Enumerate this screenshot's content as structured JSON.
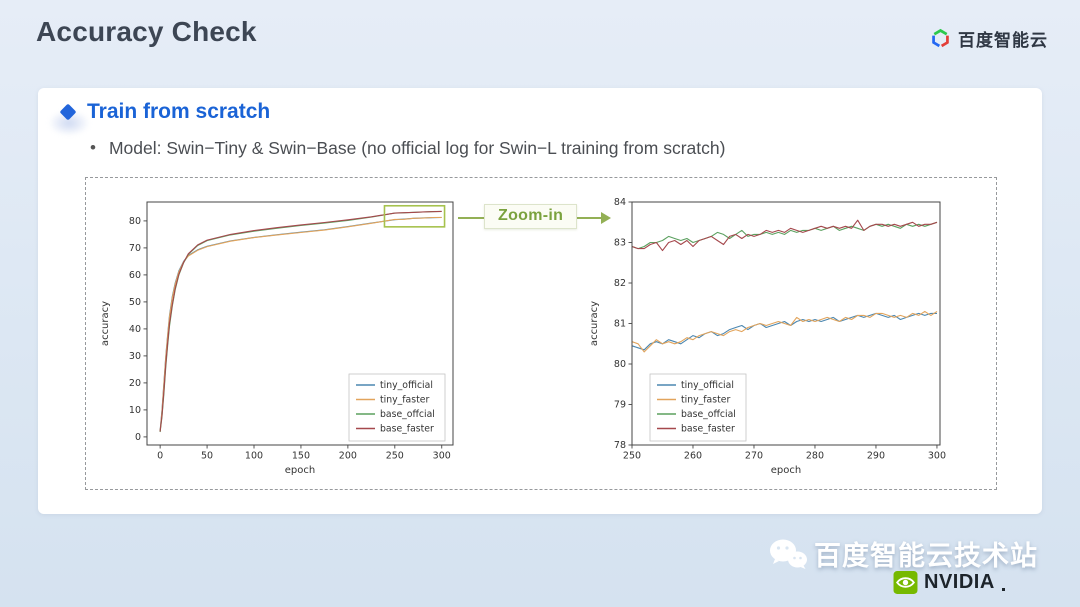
{
  "page": {
    "title": "Accuracy Check"
  },
  "brand": {
    "baidu_cloud": "百度智能云",
    "wechat_channel": "百度智能云技术站",
    "nvidia": "NVIDIA",
    "baidu_icon_colors": {
      "green": "#2dc84d",
      "blue": "#2468f2",
      "red": "#e33e38"
    },
    "nvidia_green": "#76b900"
  },
  "section": {
    "heading": "Train from scratch",
    "bullet_glyph": "•",
    "bullet": "Model: Swin−Tiny & Swin−Base (no official log for Swin−L training from scratch)"
  },
  "zoom": {
    "label": "Zoom-in",
    "arrow_color": "#93b055"
  },
  "chart_data": [
    {
      "type": "line",
      "title": "",
      "xlabel": "epoch",
      "ylabel": "accuracy",
      "xlim": [
        -14,
        312
      ],
      "ylim": [
        -3,
        87
      ],
      "xticks": [
        0,
        50,
        100,
        150,
        200,
        250,
        300
      ],
      "yticks": [
        0,
        10,
        20,
        30,
        40,
        50,
        60,
        70,
        80
      ],
      "legend_loc": "lower-right",
      "grid": false,
      "x": [
        0,
        2,
        4,
        6,
        8,
        10,
        13,
        16,
        20,
        25,
        30,
        40,
        50,
        75,
        100,
        125,
        150,
        175,
        200,
        225,
        250,
        260,
        270,
        280,
        290,
        300
      ],
      "series": [
        {
          "name": "tiny_official",
          "color": "#4c87b0",
          "y": [
            2.2,
            10,
            20,
            30,
            38,
            45,
            52,
            57,
            61.5,
            65,
            67.2,
            69.3,
            70.6,
            72.6,
            73.9,
            74.9,
            75.8,
            76.7,
            77.9,
            79.2,
            80.45,
            80.65,
            80.95,
            81.1,
            81.2,
            81.25
          ]
        },
        {
          "name": "tiny_faster",
          "color": "#e2a45c",
          "y": [
            2.0,
            9.5,
            19.5,
            29.5,
            37.5,
            44.5,
            51.5,
            56.5,
            61.2,
            64.8,
            67.0,
            69.1,
            70.5,
            72.5,
            73.8,
            74.8,
            75.7,
            76.6,
            77.8,
            79.1,
            80.55,
            80.6,
            80.95,
            81.05,
            81.25,
            81.3
          ]
        },
        {
          "name": "base_offcial",
          "color": "#5ba05f",
          "y": [
            1.8,
            7.5,
            16,
            26,
            34,
            41,
            48.5,
            54.5,
            60,
            64.5,
            67.6,
            70.9,
            72.7,
            74.8,
            76.2,
            77.3,
            78.3,
            79.2,
            80.2,
            81.4,
            82.9,
            83.0,
            83.2,
            83.3,
            83.45,
            83.5
          ]
        },
        {
          "name": "base_faster",
          "color": "#a5484d",
          "y": [
            2.0,
            8,
            17,
            27,
            35,
            42,
            49,
            55,
            60.3,
            64.6,
            67.8,
            71.1,
            72.9,
            75.0,
            76.4,
            77.5,
            78.5,
            79.4,
            80.4,
            81.5,
            82.9,
            83.05,
            83.15,
            83.35,
            83.4,
            83.5
          ]
        }
      ],
      "highlight_rect": {
        "x_range": [
          239,
          303
        ],
        "y_range": [
          77.8,
          85.6
        ],
        "color": "#a6c24d"
      }
    },
    {
      "type": "line",
      "title": "",
      "xlabel": "epoch",
      "ylabel": "accuracy",
      "xlim": [
        250,
        300.5
      ],
      "ylim": [
        78,
        84
      ],
      "xticks": [
        250,
        260,
        270,
        280,
        290,
        300
      ],
      "yticks": [
        78,
        79,
        80,
        81,
        82,
        83,
        84
      ],
      "legend_loc": "lower-left",
      "grid": false,
      "x": [
        250,
        251,
        252,
        253,
        254,
        255,
        256,
        257,
        258,
        259,
        260,
        261,
        262,
        263,
        264,
        265,
        266,
        267,
        268,
        269,
        270,
        271,
        272,
        273,
        274,
        275,
        276,
        277,
        278,
        279,
        280,
        281,
        282,
        283,
        284,
        285,
        286,
        287,
        288,
        289,
        290,
        291,
        292,
        293,
        294,
        295,
        296,
        297,
        298,
        299,
        300
      ],
      "series": [
        {
          "name": "tiny_official",
          "color": "#4c87b0",
          "y": [
            80.45,
            80.4,
            80.35,
            80.5,
            80.55,
            80.5,
            80.6,
            80.55,
            80.5,
            80.6,
            80.7,
            80.65,
            80.75,
            80.8,
            80.7,
            80.75,
            80.85,
            80.9,
            80.95,
            80.85,
            80.95,
            81.0,
            80.9,
            80.95,
            81.0,
            81.05,
            80.95,
            81.05,
            81.1,
            81.05,
            81.1,
            81.05,
            81.1,
            81.15,
            81.05,
            81.1,
            81.15,
            81.2,
            81.15,
            81.2,
            81.25,
            81.2,
            81.15,
            81.2,
            81.1,
            81.15,
            81.2,
            81.25,
            81.2,
            81.25,
            81.25
          ]
        },
        {
          "name": "tiny_faster",
          "color": "#e2a45c",
          "y": [
            80.55,
            80.5,
            80.3,
            80.45,
            80.6,
            80.5,
            80.55,
            80.5,
            80.55,
            80.65,
            80.6,
            80.7,
            80.75,
            80.8,
            80.75,
            80.7,
            80.8,
            80.85,
            80.8,
            80.9,
            80.95,
            81.0,
            80.95,
            81.0,
            81.05,
            81.0,
            80.95,
            81.15,
            81.05,
            81.1,
            81.05,
            81.1,
            81.15,
            81.1,
            81.05,
            81.15,
            81.1,
            81.2,
            81.2,
            81.15,
            81.25,
            81.25,
            81.2,
            81.15,
            81.2,
            81.15,
            81.25,
            81.2,
            81.3,
            81.2,
            81.3
          ]
        },
        {
          "name": "base_offcial",
          "color": "#5ba05f",
          "y": [
            82.9,
            82.85,
            82.9,
            83.0,
            83.0,
            83.05,
            83.15,
            83.1,
            83.05,
            83.1,
            83.0,
            83.05,
            83.1,
            83.15,
            83.25,
            83.2,
            83.1,
            83.2,
            83.3,
            83.15,
            83.2,
            83.2,
            83.25,
            83.2,
            83.25,
            83.2,
            83.3,
            83.25,
            83.3,
            83.3,
            83.35,
            83.3,
            83.35,
            83.4,
            83.3,
            83.35,
            83.4,
            83.35,
            83.3,
            83.4,
            83.45,
            83.4,
            83.45,
            83.4,
            83.35,
            83.45,
            83.4,
            83.45,
            83.4,
            83.45,
            83.5
          ]
        },
        {
          "name": "base_faster",
          "color": "#a5484d",
          "y": [
            82.9,
            82.85,
            82.85,
            82.95,
            83.0,
            82.8,
            83.0,
            83.05,
            82.95,
            83.05,
            82.9,
            83.05,
            83.1,
            83.15,
            83.05,
            82.95,
            83.15,
            83.2,
            83.1,
            83.2,
            83.15,
            83.2,
            83.3,
            83.25,
            83.3,
            83.25,
            83.35,
            83.3,
            83.25,
            83.3,
            83.35,
            83.4,
            83.35,
            83.4,
            83.35,
            83.4,
            83.35,
            83.55,
            83.3,
            83.4,
            83.45,
            83.45,
            83.4,
            83.45,
            83.4,
            83.45,
            83.5,
            83.4,
            83.45,
            83.45,
            83.5
          ]
        }
      ]
    }
  ]
}
